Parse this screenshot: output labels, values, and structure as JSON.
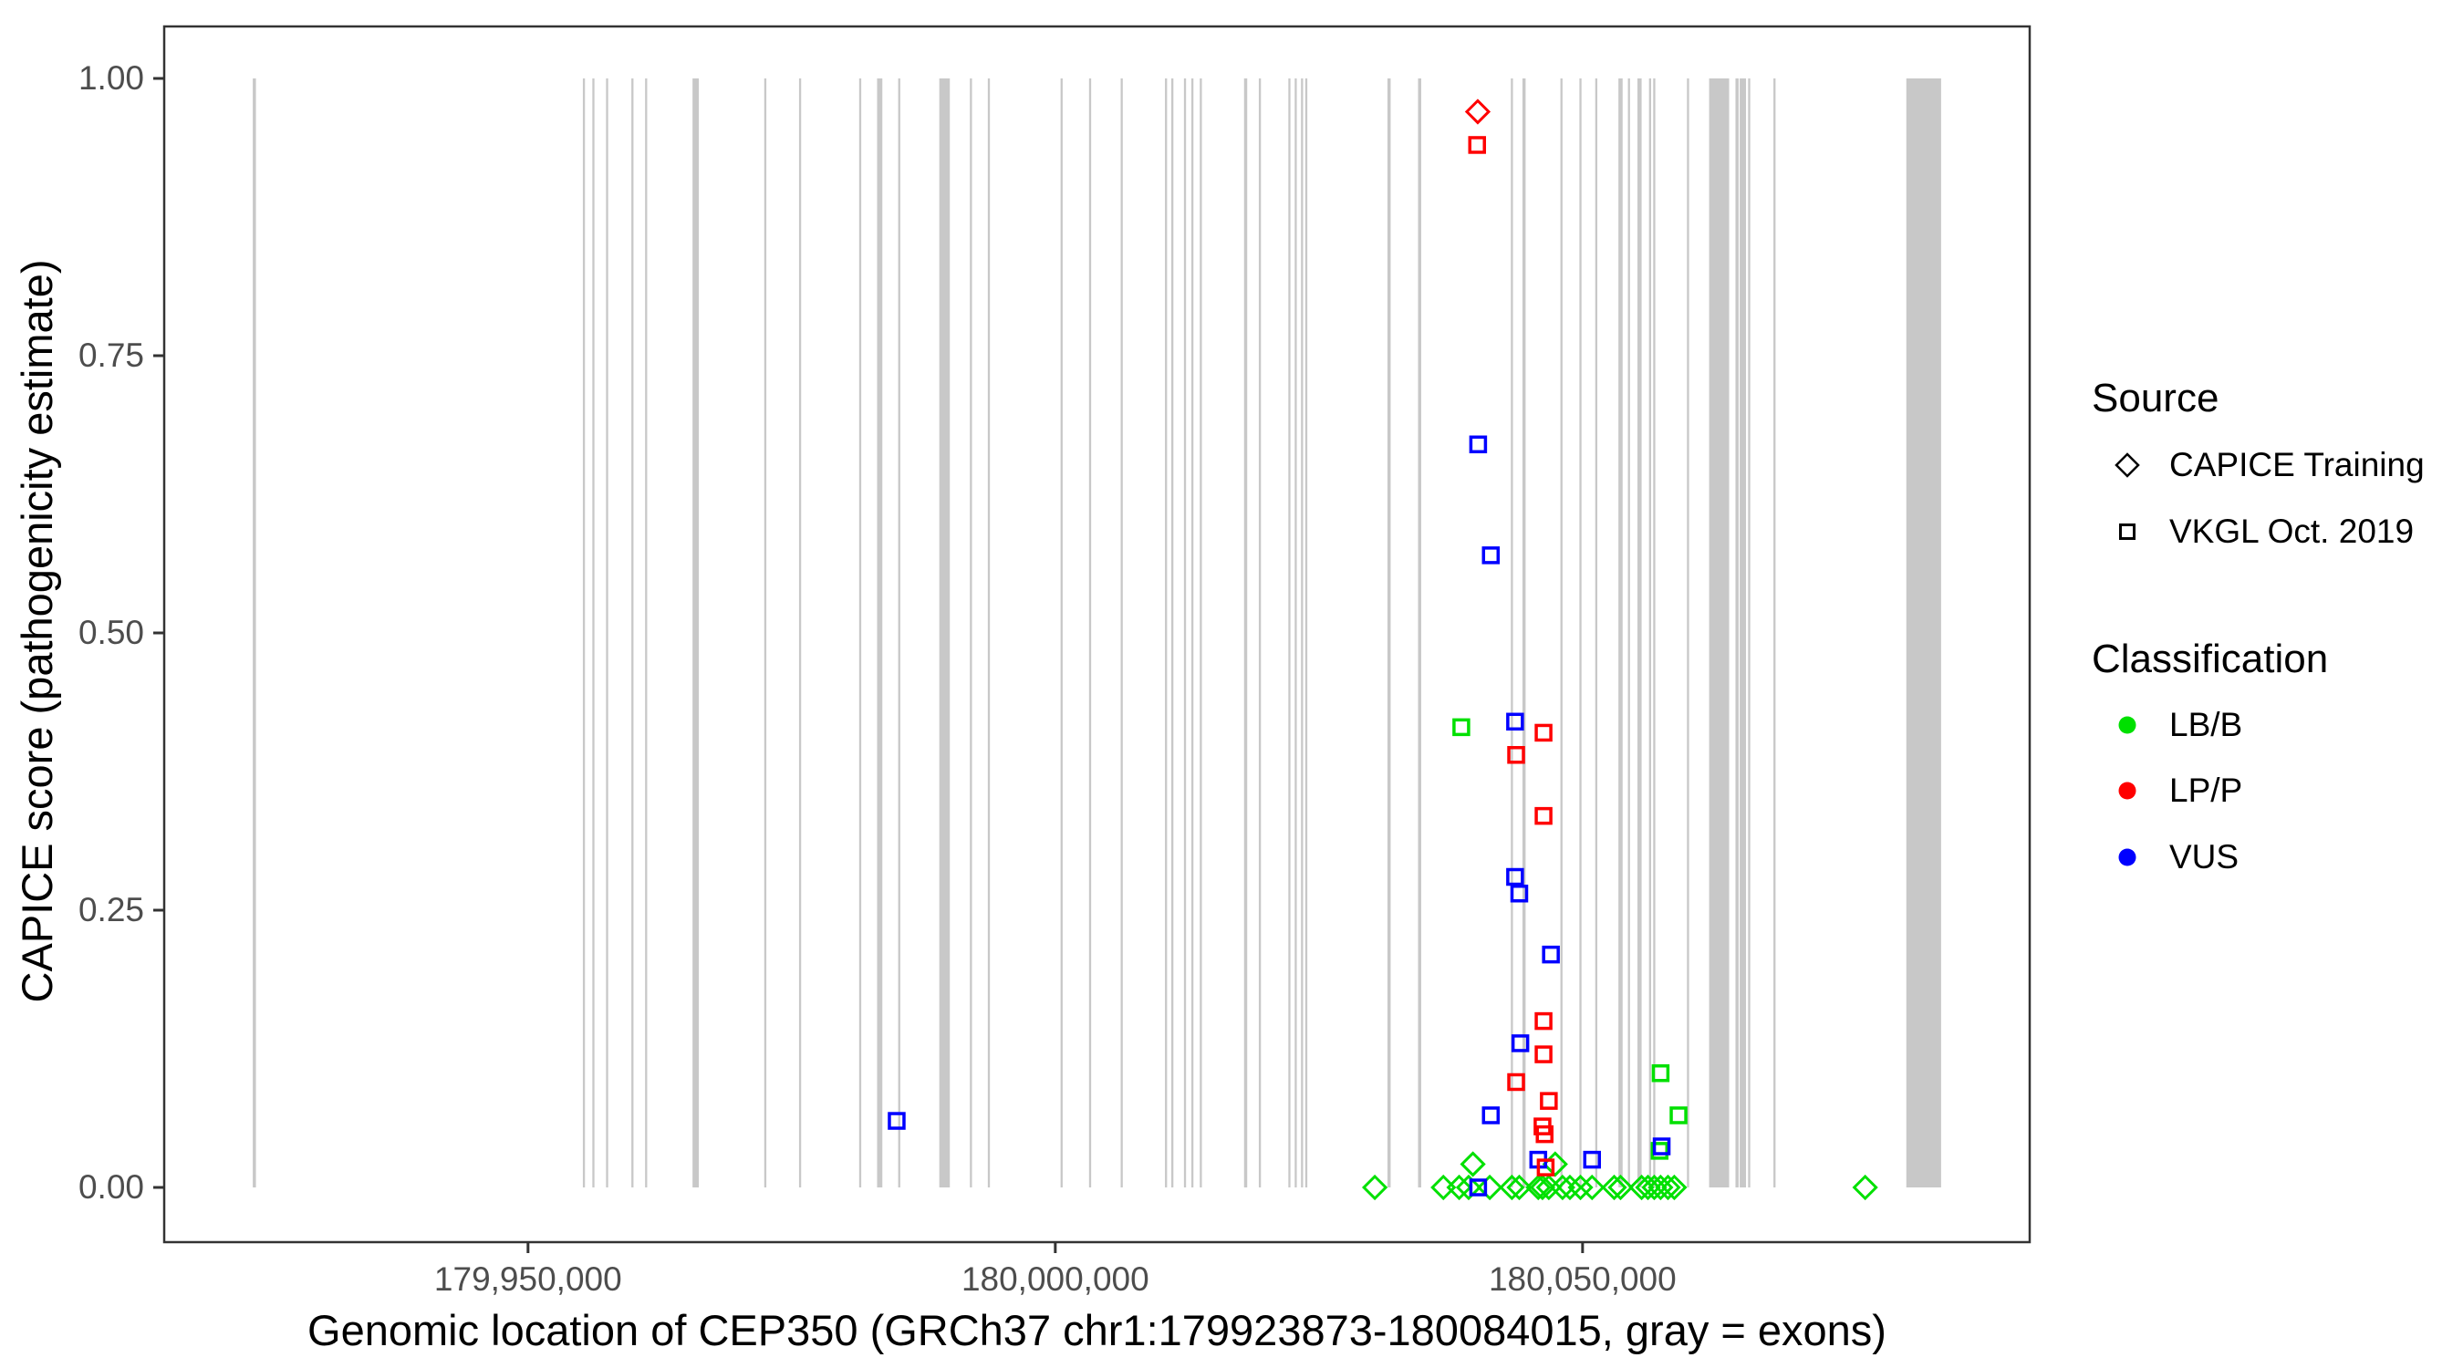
{
  "figure": {
    "background": "#FFFFFF"
  },
  "axes": {
    "x": {
      "title": "Genomic location of CEP350 (GRCh37 chr1:179923873-180084015, gray = exons)",
      "ticks": [
        {
          "value": 179950000,
          "label": "179,950,000"
        },
        {
          "value": 180000000,
          "label": "180,000,000"
        },
        {
          "value": 180050000,
          "label": "180,050,000"
        }
      ]
    },
    "y": {
      "title": "CAPICE score (pathogenicity estimate)",
      "ticks": [
        {
          "value": 0.0,
          "label": "0.00"
        },
        {
          "value": 0.25,
          "label": "0.25"
        },
        {
          "value": 0.5,
          "label": "0.50"
        },
        {
          "value": 0.75,
          "label": "0.75"
        },
        {
          "value": 1.0,
          "label": "1.00"
        }
      ]
    }
  },
  "legend": {
    "source": {
      "title": "Source",
      "items": [
        {
          "label": "CAPICE Training",
          "shape": "diamond"
        },
        {
          "label": "VKGL Oct. 2019",
          "shape": "square"
        }
      ]
    },
    "classification": {
      "title": "Classification",
      "items": [
        {
          "label": "LB/B",
          "color": "#00E000"
        },
        {
          "label": "LP/P",
          "color": "#FF0000"
        },
        {
          "label": "VUS",
          "color": "#0000FF"
        }
      ]
    }
  },
  "colors": {
    "exon": "#C8C8C8",
    "panel_border": "#333333",
    "tick_mark": "#333333",
    "tick_text": "#4D4D4D",
    "class_colors": {
      "LB/B": "#00E000",
      "LP/P": "#FF0000",
      "VUS": "#0000FF"
    }
  },
  "chart_data": {
    "type": "scatter",
    "title": "",
    "xlabel": "Genomic location of CEP350 (GRCh37 chr1:179923873-180084015, gray = exons)",
    "ylabel": "CAPICE score (pathogenicity estimate)",
    "x_range_bp": [
      179915500,
      180092400
    ],
    "y_range": [
      -0.047,
      1.05
    ],
    "grid": false,
    "legend_position": "right",
    "exons_bp": [
      [
        179923900,
        179924200
      ],
      [
        179955200,
        179955400
      ],
      [
        179956100,
        179956300
      ],
      [
        179957400,
        179957600
      ],
      [
        179959800,
        179960000
      ],
      [
        179961100,
        179961300
      ],
      [
        179965600,
        179966200
      ],
      [
        179972400,
        179972600
      ],
      [
        179975700,
        179975900
      ],
      [
        179981400,
        179981600
      ],
      [
        179983100,
        179983600
      ],
      [
        179985100,
        179985300
      ],
      [
        179989000,
        179990000
      ],
      [
        179991900,
        179992100
      ],
      [
        179993600,
        179993800
      ],
      [
        180000500,
        180000700
      ],
      [
        180003200,
        180003400
      ],
      [
        180006200,
        180006400
      ],
      [
        180010400,
        180010600
      ],
      [
        180011000,
        180011200
      ],
      [
        180012200,
        180012400
      ],
      [
        180012900,
        180013100
      ],
      [
        180013700,
        180013900
      ],
      [
        180017900,
        180018200
      ],
      [
        180019300,
        180019500
      ],
      [
        180022100,
        180022300
      ],
      [
        180022700,
        180022900
      ],
      [
        180023300,
        180023500
      ],
      [
        180023700,
        180023900
      ],
      [
        180031500,
        180031800
      ],
      [
        180034400,
        180034700
      ],
      [
        180043200,
        180043400
      ],
      [
        180044300,
        180044600
      ],
      [
        180047900,
        180048100
      ],
      [
        180049700,
        180049900
      ],
      [
        180051200,
        180051400
      ],
      [
        180053400,
        180053800
      ],
      [
        180054300,
        180054500
      ],
      [
        180055200,
        180055600
      ],
      [
        180056300,
        180056500
      ],
      [
        180056700,
        180056900
      ],
      [
        180059900,
        180060100
      ],
      [
        180062000,
        180063900
      ],
      [
        180064500,
        180064800
      ],
      [
        180064900,
        180065500
      ],
      [
        180065700,
        180065900
      ],
      [
        180068100,
        180068300
      ],
      [
        180080700,
        180084000
      ]
    ],
    "points": [
      {
        "source": "CAPICE Training",
        "class": "LP/P",
        "pos": 180040060,
        "score": 0.97
      },
      {
        "source": "CAPICE Training",
        "class": "LB/B",
        "pos": 180039600,
        "score": 0.021
      },
      {
        "source": "CAPICE Training",
        "class": "LB/B",
        "pos": 180047400,
        "score": 0.021
      },
      {
        "source": "CAPICE Training",
        "class": "LB/B",
        "pos": 180030300,
        "score": 0.0
      },
      {
        "source": "CAPICE Training",
        "class": "LB/B",
        "pos": 180036800,
        "score": 0.0
      },
      {
        "source": "CAPICE Training",
        "class": "LB/B",
        "pos": 180038300,
        "score": 0.0
      },
      {
        "source": "CAPICE Training",
        "class": "LB/B",
        "pos": 180039200,
        "score": 0.0
      },
      {
        "source": "CAPICE Training",
        "class": "LB/B",
        "pos": 180041200,
        "score": 0.0
      },
      {
        "source": "CAPICE Training",
        "class": "LB/B",
        "pos": 180043300,
        "score": 0.0
      },
      {
        "source": "CAPICE Training",
        "class": "LB/B",
        "pos": 180044000,
        "score": 0.0
      },
      {
        "source": "CAPICE Training",
        "class": "LB/B",
        "pos": 180045800,
        "score": 0.0
      },
      {
        "source": "CAPICE Training",
        "class": "LB/B",
        "pos": 180046200,
        "score": 0.0
      },
      {
        "source": "CAPICE Training",
        "class": "LB/B",
        "pos": 180046800,
        "score": 0.0
      },
      {
        "source": "CAPICE Training",
        "class": "LB/B",
        "pos": 180048100,
        "score": 0.0
      },
      {
        "source": "CAPICE Training",
        "class": "LB/B",
        "pos": 180048800,
        "score": 0.0
      },
      {
        "source": "CAPICE Training",
        "class": "LB/B",
        "pos": 180049800,
        "score": 0.0
      },
      {
        "source": "CAPICE Training",
        "class": "LB/B",
        "pos": 180050900,
        "score": 0.0
      },
      {
        "source": "CAPICE Training",
        "class": "LB/B",
        "pos": 180053000,
        "score": 0.0
      },
      {
        "source": "CAPICE Training",
        "class": "LB/B",
        "pos": 180053600,
        "score": 0.0
      },
      {
        "source": "CAPICE Training",
        "class": "LB/B",
        "pos": 180055600,
        "score": 0.0
      },
      {
        "source": "CAPICE Training",
        "class": "LB/B",
        "pos": 180056200,
        "score": 0.0
      },
      {
        "source": "CAPICE Training",
        "class": "LB/B",
        "pos": 180056800,
        "score": 0.0
      },
      {
        "source": "CAPICE Training",
        "class": "LB/B",
        "pos": 180057400,
        "score": 0.0
      },
      {
        "source": "CAPICE Training",
        "class": "LB/B",
        "pos": 180058100,
        "score": 0.0
      },
      {
        "source": "CAPICE Training",
        "class": "LB/B",
        "pos": 180058700,
        "score": 0.0
      },
      {
        "source": "CAPICE Training",
        "class": "LB/B",
        "pos": 180076800,
        "score": 0.0
      },
      {
        "source": "VKGL Oct. 2019",
        "class": "LB/B",
        "pos": 180038500,
        "score": 0.415
      },
      {
        "source": "VKGL Oct. 2019",
        "class": "LB/B",
        "pos": 180057400,
        "score": 0.103
      },
      {
        "source": "VKGL Oct. 2019",
        "class": "LB/B",
        "pos": 180059100,
        "score": 0.065
      },
      {
        "source": "VKGL Oct. 2019",
        "class": "LB/B",
        "pos": 180057300,
        "score": 0.033
      },
      {
        "source": "VKGL Oct. 2019",
        "class": "VUS",
        "pos": 179984960,
        "score": 0.06
      },
      {
        "source": "VKGL Oct. 2019",
        "class": "VUS",
        "pos": 180040100,
        "score": 0.67
      },
      {
        "source": "VKGL Oct. 2019",
        "class": "VUS",
        "pos": 180041300,
        "score": 0.57
      },
      {
        "source": "VKGL Oct. 2019",
        "class": "VUS",
        "pos": 180043600,
        "score": 0.42
      },
      {
        "source": "VKGL Oct. 2019",
        "class": "VUS",
        "pos": 180043600,
        "score": 0.28
      },
      {
        "source": "VKGL Oct. 2019",
        "class": "VUS",
        "pos": 180044000,
        "score": 0.265
      },
      {
        "source": "VKGL Oct. 2019",
        "class": "VUS",
        "pos": 180047000,
        "score": 0.21
      },
      {
        "source": "VKGL Oct. 2019",
        "class": "VUS",
        "pos": 180044100,
        "score": 0.13
      },
      {
        "source": "VKGL Oct. 2019",
        "class": "VUS",
        "pos": 180041300,
        "score": 0.065
      },
      {
        "source": "VKGL Oct. 2019",
        "class": "VUS",
        "pos": 180057500,
        "score": 0.037
      },
      {
        "source": "VKGL Oct. 2019",
        "class": "VUS",
        "pos": 180045800,
        "score": 0.025
      },
      {
        "source": "VKGL Oct. 2019",
        "class": "VUS",
        "pos": 180050900,
        "score": 0.025
      },
      {
        "source": "VKGL Oct. 2019",
        "class": "VUS",
        "pos": 180040100,
        "score": 0.0
      },
      {
        "source": "VKGL Oct. 2019",
        "class": "LP/P",
        "pos": 180040000,
        "score": 0.94
      },
      {
        "source": "VKGL Oct. 2019",
        "class": "LP/P",
        "pos": 180046300,
        "score": 0.41
      },
      {
        "source": "VKGL Oct. 2019",
        "class": "LP/P",
        "pos": 180043700,
        "score": 0.39
      },
      {
        "source": "VKGL Oct. 2019",
        "class": "LP/P",
        "pos": 180046300,
        "score": 0.335
      },
      {
        "source": "VKGL Oct. 2019",
        "class": "LP/P",
        "pos": 180046300,
        "score": 0.15
      },
      {
        "source": "VKGL Oct. 2019",
        "class": "LP/P",
        "pos": 180046300,
        "score": 0.12
      },
      {
        "source": "VKGL Oct. 2019",
        "class": "LP/P",
        "pos": 180043700,
        "score": 0.095
      },
      {
        "source": "VKGL Oct. 2019",
        "class": "LP/P",
        "pos": 180046800,
        "score": 0.078
      },
      {
        "source": "VKGL Oct. 2019",
        "class": "LP/P",
        "pos": 180046200,
        "score": 0.055
      },
      {
        "source": "VKGL Oct. 2019",
        "class": "LP/P",
        "pos": 180046400,
        "score": 0.048
      },
      {
        "source": "VKGL Oct. 2019",
        "class": "LP/P",
        "pos": 180046500,
        "score": 0.018
      }
    ]
  }
}
